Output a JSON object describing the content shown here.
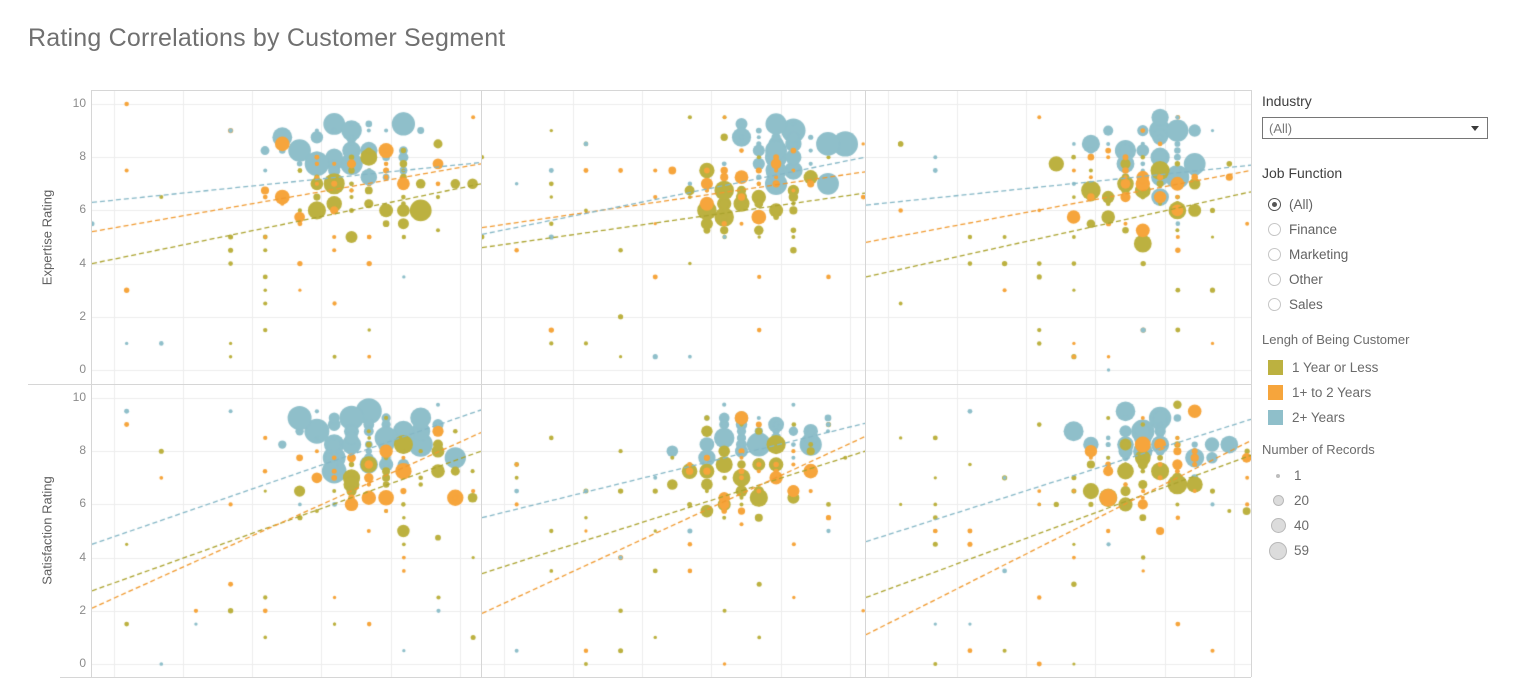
{
  "title": "Rating Correlations by Customer Segment",
  "sidebar": {
    "industry": {
      "label": "Industry",
      "value": "(All)"
    },
    "job_function": {
      "label": "Job Function",
      "options": [
        {
          "label": "(All)",
          "selected": true
        },
        {
          "label": "Finance",
          "selected": false
        },
        {
          "label": "Marketing",
          "selected": false
        },
        {
          "label": "Other",
          "selected": false
        },
        {
          "label": "Sales",
          "selected": false
        }
      ]
    },
    "length_legend": {
      "label": "Lengh of Being Customer",
      "items": [
        {
          "label": "1 Year or Less",
          "key": "olive",
          "color": "#bcb140"
        },
        {
          "label": "1+ to 2 Years",
          "key": "orange",
          "color": "#f6a53c"
        },
        {
          "label": "2+ Years",
          "key": "blue",
          "color": "#8fbfca"
        }
      ]
    },
    "size_legend": {
      "label": "Number of Records",
      "items": [
        {
          "label": "1",
          "diameter": 4
        },
        {
          "label": "20",
          "diameter": 11
        },
        {
          "label": "40",
          "diameter": 15
        },
        {
          "label": "59",
          "diameter": 18
        }
      ]
    }
  },
  "chart_data": {
    "type": "scatter",
    "title": "Rating Correlations by Customer Segment",
    "grid": true,
    "legend_position": "right",
    "x_axis_labels_visible": false,
    "rows": [
      {
        "ylabel": "Expertise Rating",
        "ylim": [
          0,
          10
        ],
        "ticks": [
          10,
          8,
          6,
          4,
          2,
          0
        ]
      },
      {
        "ylabel": "Satisfaction Rating",
        "ylim": [
          0,
          10
        ],
        "ticks": [
          10,
          8,
          6,
          4,
          2,
          0
        ]
      }
    ],
    "columns": 3,
    "series": [
      {
        "name": "1 Year or Less",
        "key": "olive",
        "color": "#bcb140",
        "trend_color": "#aba32f"
      },
      {
        "name": "1+ to 2 Years",
        "key": "orange",
        "color": "#f6a53c",
        "trend_color": "#f09a30"
      },
      {
        "name": "2+ Years",
        "key": "blue",
        "color": "#8fbfca",
        "trend_color": "#85b7c6"
      }
    ],
    "size_range_records": [
      1,
      59
    ],
    "panels": [
      {
        "row": 0,
        "col": 0,
        "seed": 11,
        "trend": {
          "olive": [
            4.0,
            7.0
          ],
          "orange": [
            5.2,
            7.75
          ],
          "blue": [
            6.3,
            7.8
          ]
        },
        "clusters": [
          {
            "c": "blue",
            "cx": 0.67,
            "cy": 8.15,
            "sx": 0.085,
            "sy": 0.62,
            "n": 52,
            "rmax": 13
          },
          {
            "c": "olive",
            "cx": 0.71,
            "cy": 6.8,
            "sx": 0.1,
            "sy": 0.85,
            "n": 42,
            "rmax": 11
          },
          {
            "c": "orange",
            "cx": 0.66,
            "cy": 7.1,
            "sx": 0.11,
            "sy": 0.85,
            "n": 26,
            "rmax": 8
          }
        ],
        "sprinkle": [
          {
            "c": "olive",
            "n": 24
          },
          {
            "c": "orange",
            "n": 17
          },
          {
            "c": "blue",
            "n": 8
          }
        ]
      },
      {
        "row": 0,
        "col": 1,
        "seed": 22,
        "trend": {
          "olive": [
            4.6,
            6.65
          ],
          "orange": [
            5.35,
            7.45
          ],
          "blue": [
            5.1,
            8.0
          ]
        },
        "clusters": [
          {
            "c": "blue",
            "cx": 0.77,
            "cy": 8.25,
            "sx": 0.075,
            "sy": 0.6,
            "n": 50,
            "rmax": 13
          },
          {
            "c": "olive",
            "cx": 0.7,
            "cy": 6.4,
            "sx": 0.1,
            "sy": 0.85,
            "n": 40,
            "rmax": 10
          },
          {
            "c": "orange",
            "cx": 0.7,
            "cy": 7.0,
            "sx": 0.1,
            "sy": 0.85,
            "n": 25,
            "rmax": 8
          }
        ],
        "sprinkle": [
          {
            "c": "olive",
            "n": 24
          },
          {
            "c": "orange",
            "n": 15
          },
          {
            "c": "blue",
            "n": 9
          }
        ]
      },
      {
        "row": 0,
        "col": 2,
        "seed": 33,
        "trend": {
          "olive": [
            3.5,
            6.7
          ],
          "orange": [
            4.8,
            7.5
          ],
          "blue": [
            6.2,
            7.7
          ]
        },
        "clusters": [
          {
            "c": "blue",
            "cx": 0.76,
            "cy": 7.9,
            "sx": 0.085,
            "sy": 0.7,
            "n": 52,
            "rmax": 12
          },
          {
            "c": "olive",
            "cx": 0.73,
            "cy": 6.6,
            "sx": 0.1,
            "sy": 0.9,
            "n": 44,
            "rmax": 10
          },
          {
            "c": "orange",
            "cx": 0.72,
            "cy": 7.2,
            "sx": 0.1,
            "sy": 0.85,
            "n": 27,
            "rmax": 8
          }
        ],
        "sprinkle": [
          {
            "c": "olive",
            "n": 25
          },
          {
            "c": "orange",
            "n": 16
          },
          {
            "c": "blue",
            "n": 8
          }
        ]
      },
      {
        "row": 1,
        "col": 0,
        "seed": 44,
        "trend": {
          "olive": [
            2.75,
            8.0
          ],
          "orange": [
            2.1,
            8.7
          ],
          "blue": [
            4.5,
            9.55
          ]
        },
        "clusters": [
          {
            "c": "blue",
            "cx": 0.7,
            "cy": 8.35,
            "sx": 0.095,
            "sy": 0.55,
            "n": 58,
            "rmax": 13
          },
          {
            "c": "olive",
            "cx": 0.71,
            "cy": 7.0,
            "sx": 0.1,
            "sy": 0.95,
            "n": 40,
            "rmax": 10
          },
          {
            "c": "orange",
            "cx": 0.69,
            "cy": 7.2,
            "sx": 0.1,
            "sy": 0.95,
            "n": 27,
            "rmax": 9
          }
        ],
        "sprinkle": [
          {
            "c": "olive",
            "n": 24
          },
          {
            "c": "orange",
            "n": 17
          },
          {
            "c": "blue",
            "n": 9
          }
        ]
      },
      {
        "row": 1,
        "col": 1,
        "seed": 55,
        "trend": {
          "olive": [
            3.4,
            8.0
          ],
          "orange": [
            1.9,
            8.55
          ],
          "blue": [
            5.5,
            9.05
          ]
        },
        "clusters": [
          {
            "c": "blue",
            "cx": 0.73,
            "cy": 8.45,
            "sx": 0.09,
            "sy": 0.55,
            "n": 56,
            "rmax": 13
          },
          {
            "c": "olive",
            "cx": 0.69,
            "cy": 7.3,
            "sx": 0.1,
            "sy": 0.95,
            "n": 38,
            "rmax": 10
          },
          {
            "c": "orange",
            "cx": 0.72,
            "cy": 7.1,
            "sx": 0.1,
            "sy": 0.95,
            "n": 28,
            "rmax": 9
          }
        ],
        "sprinkle": [
          {
            "c": "olive",
            "n": 25
          },
          {
            "c": "orange",
            "n": 16
          },
          {
            "c": "blue",
            "n": 8
          }
        ]
      },
      {
        "row": 1,
        "col": 2,
        "seed": 66,
        "trend": {
          "olive": [
            2.5,
            7.85
          ],
          "orange": [
            1.1,
            8.4
          ],
          "blue": [
            4.6,
            9.2
          ]
        },
        "clusters": [
          {
            "c": "blue",
            "cx": 0.76,
            "cy": 8.3,
            "sx": 0.085,
            "sy": 0.6,
            "n": 54,
            "rmax": 12
          },
          {
            "c": "olive",
            "cx": 0.74,
            "cy": 7.0,
            "sx": 0.1,
            "sy": 0.95,
            "n": 40,
            "rmax": 10
          },
          {
            "c": "orange",
            "cx": 0.74,
            "cy": 7.4,
            "sx": 0.1,
            "sy": 0.9,
            "n": 28,
            "rmax": 9
          }
        ],
        "sprinkle": [
          {
            "c": "olive",
            "n": 25
          },
          {
            "c": "orange",
            "n": 17
          },
          {
            "c": "blue",
            "n": 8
          }
        ]
      }
    ]
  }
}
